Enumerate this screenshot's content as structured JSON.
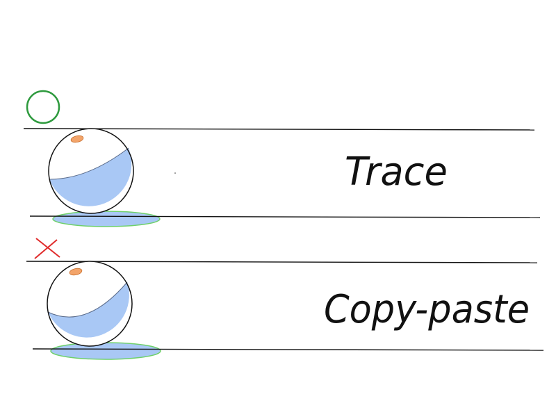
{
  "colors": {
    "background": "#ffffff",
    "ink": "#111111",
    "good_mark": "#2e9a3e",
    "bad_mark": "#e02a2a",
    "ball_shade": "#a9c8f5",
    "shadow_fill": "#a9c8f5",
    "shadow_outline": "#6fd06a",
    "highlight": "#f3a46a"
  },
  "icons": {
    "good_mark": "circle-icon",
    "bad_mark": "cross-icon"
  },
  "rows": [
    {
      "mark": "good",
      "label": "Trace"
    },
    {
      "mark": "bad",
      "label": "Copy-paste"
    }
  ]
}
